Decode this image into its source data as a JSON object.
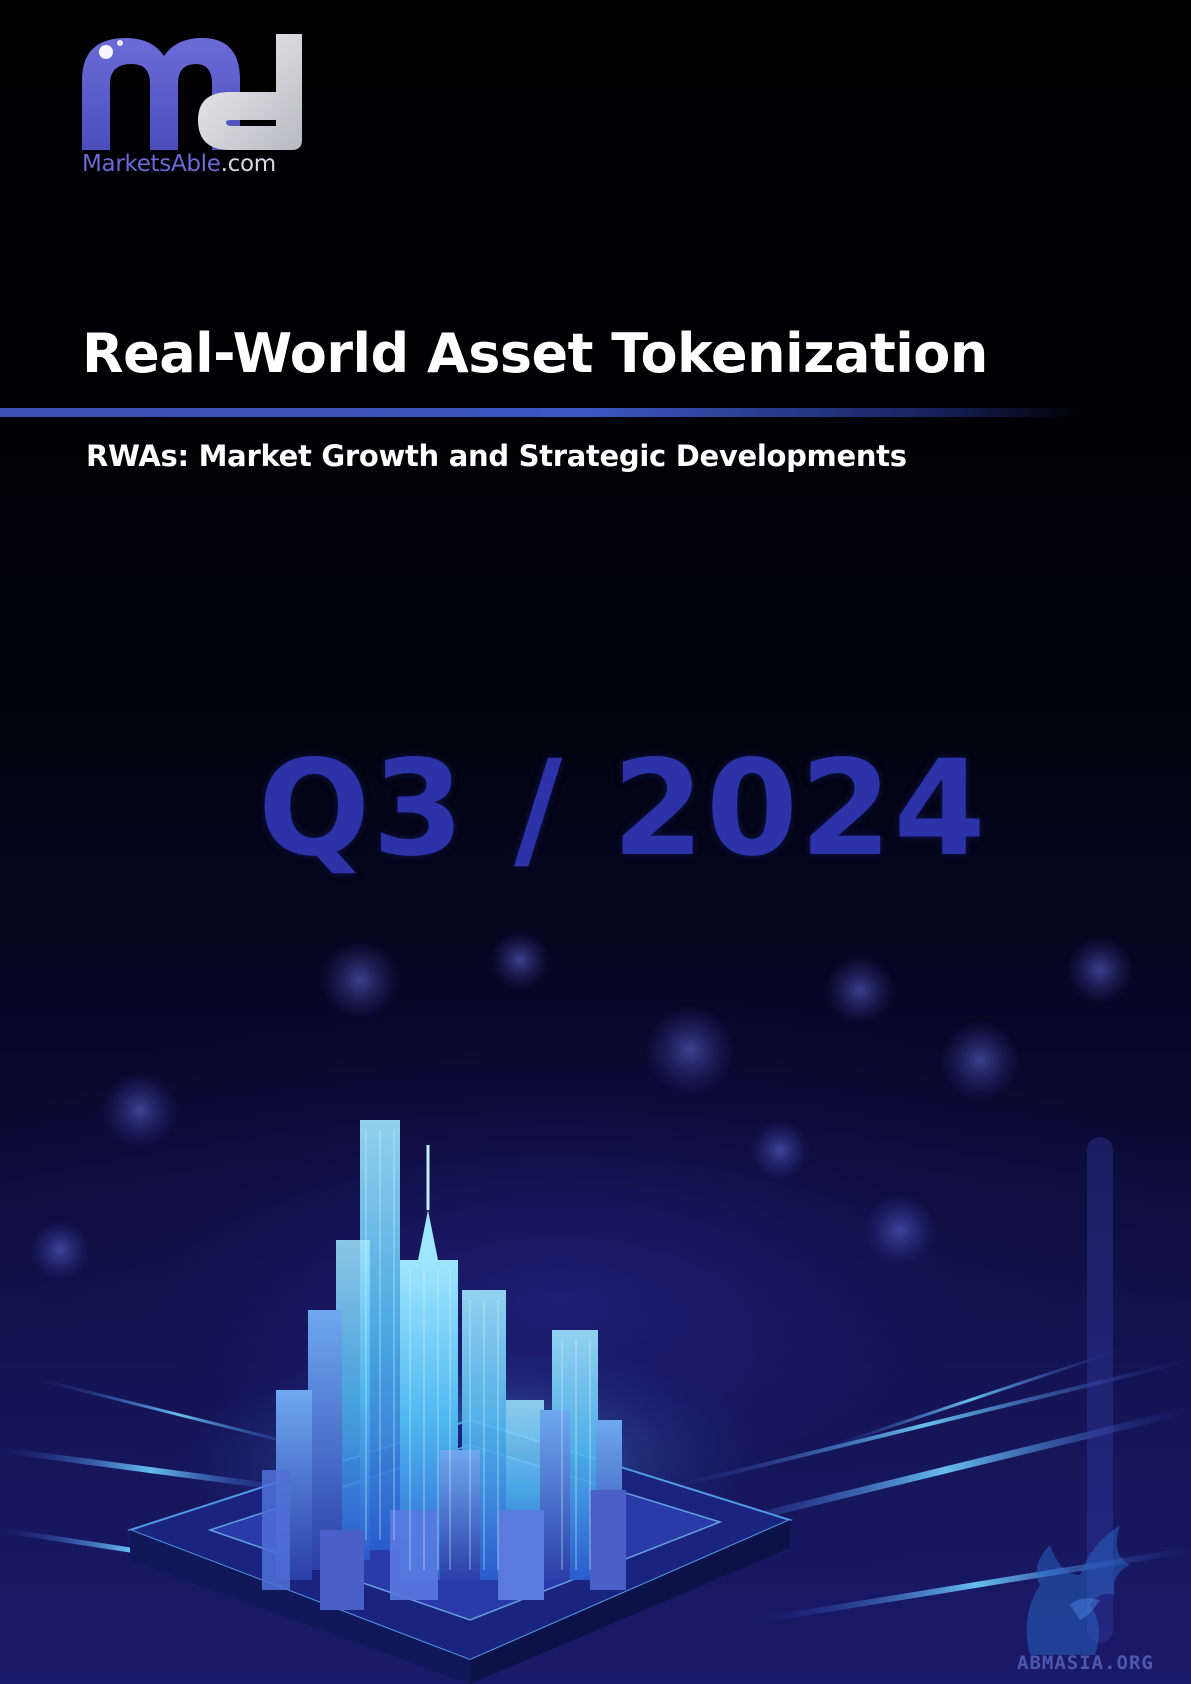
{
  "logo": {
    "brand": "MarketsAble",
    "tld": ".com"
  },
  "cover": {
    "title": "Real-World Asset Tokenization",
    "subtitle": "RWAs: Market Growth and Strategic Developments",
    "period": "Q3 / 2024"
  },
  "watermark": {
    "text": "ABMASIA.ORG"
  },
  "colors": {
    "background": "#000000",
    "accent_blue": "#3a56c0",
    "period_text": "#2c33a8",
    "logo_purple": "#6a6ad8",
    "city_glow": "#5fd8ff"
  },
  "images": {
    "hero": "glowing-city-on-circuit-board-illustration",
    "watermark_logo": "winged-horse-watermark"
  }
}
